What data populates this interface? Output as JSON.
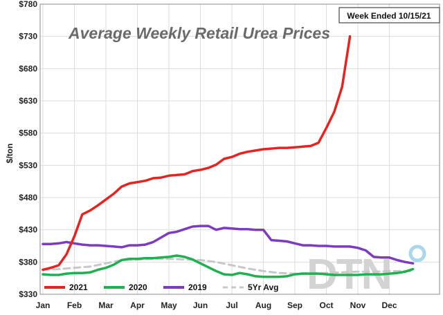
{
  "chart_data": {
    "type": "line",
    "title": "Average Weekly Retail Urea Prices",
    "note": "Week Ended 10/15/21",
    "ylabel": "$/ton",
    "xlabel": "",
    "ylim": [
      330,
      780
    ],
    "y_ticks": [
      "$330",
      "$380",
      "$430",
      "$480",
      "$530",
      "$580",
      "$630",
      "$680",
      "$730",
      "$780"
    ],
    "x_ticks": [
      "Jan",
      "Feb",
      "Mar",
      "Apr",
      "May",
      "Jun",
      "Jul",
      "Aug",
      "Sep",
      "Oct",
      "Nov",
      "Dec"
    ],
    "watermark": "DTN",
    "series": [
      {
        "name": "2021",
        "color": "#e8231f",
        "style": "solid",
        "points": [
          [
            0,
            368
          ],
          [
            0.25,
            371
          ],
          [
            0.5,
            375
          ],
          [
            0.75,
            392
          ],
          [
            1,
            420
          ],
          [
            1.25,
            454
          ],
          [
            1.5,
            460
          ],
          [
            1.75,
            468
          ],
          [
            2,
            477
          ],
          [
            2.25,
            486
          ],
          [
            2.5,
            497
          ],
          [
            2.75,
            502
          ],
          [
            3,
            504
          ],
          [
            3.25,
            506
          ],
          [
            3.5,
            510
          ],
          [
            3.75,
            511
          ],
          [
            4,
            514
          ],
          [
            4.25,
            515
          ],
          [
            4.5,
            516
          ],
          [
            4.75,
            521
          ],
          [
            5,
            523
          ],
          [
            5.25,
            526
          ],
          [
            5.5,
            531
          ],
          [
            5.75,
            540
          ],
          [
            6,
            543
          ],
          [
            6.25,
            548
          ],
          [
            6.5,
            551
          ],
          [
            6.75,
            553
          ],
          [
            7,
            555
          ],
          [
            7.25,
            556
          ],
          [
            7.5,
            557
          ],
          [
            7.75,
            557
          ],
          [
            8,
            558
          ],
          [
            8.25,
            559
          ],
          [
            8.5,
            560
          ],
          [
            8.75,
            565
          ],
          [
            9,
            588
          ],
          [
            9.25,
            613
          ],
          [
            9.5,
            652
          ],
          [
            9.75,
            730
          ]
        ]
      },
      {
        "name": "2020",
        "color": "#1fb050",
        "style": "solid",
        "points": [
          [
            0,
            361
          ],
          [
            0.25,
            360
          ],
          [
            0.5,
            360
          ],
          [
            0.75,
            362
          ],
          [
            1,
            363
          ],
          [
            1.25,
            363
          ],
          [
            1.5,
            364
          ],
          [
            1.75,
            368
          ],
          [
            2,
            371
          ],
          [
            2.25,
            376
          ],
          [
            2.5,
            383
          ],
          [
            2.75,
            385
          ],
          [
            3,
            385
          ],
          [
            3.25,
            386
          ],
          [
            3.5,
            386
          ],
          [
            3.75,
            387
          ],
          [
            4,
            388
          ],
          [
            4.25,
            390
          ],
          [
            4.5,
            388
          ],
          [
            4.75,
            384
          ],
          [
            5,
            378
          ],
          [
            5.25,
            372
          ],
          [
            5.5,
            366
          ],
          [
            5.75,
            361
          ],
          [
            6,
            360
          ],
          [
            6.25,
            363
          ],
          [
            6.5,
            361
          ],
          [
            6.75,
            358
          ],
          [
            7,
            357
          ],
          [
            7.25,
            357
          ],
          [
            7.5,
            357
          ],
          [
            7.75,
            358
          ],
          [
            8,
            361
          ],
          [
            8.25,
            362
          ],
          [
            8.5,
            362
          ],
          [
            8.75,
            362
          ],
          [
            9,
            361
          ],
          [
            9.25,
            360
          ],
          [
            9.5,
            360
          ],
          [
            9.75,
            360
          ],
          [
            10,
            360
          ],
          [
            10.25,
            361
          ],
          [
            10.5,
            361
          ],
          [
            10.75,
            361
          ],
          [
            11,
            362
          ],
          [
            11.25,
            363
          ],
          [
            11.5,
            365
          ],
          [
            11.75,
            369
          ]
        ]
      },
      {
        "name": "2019",
        "color": "#7d3bbf",
        "style": "solid",
        "points": [
          [
            0,
            408
          ],
          [
            0.25,
            408
          ],
          [
            0.5,
            409
          ],
          [
            0.75,
            411
          ],
          [
            1,
            409
          ],
          [
            1.25,
            407
          ],
          [
            1.5,
            406
          ],
          [
            1.75,
            406
          ],
          [
            2,
            405
          ],
          [
            2.25,
            404
          ],
          [
            2.5,
            403
          ],
          [
            2.75,
            406
          ],
          [
            3,
            406
          ],
          [
            3.25,
            407
          ],
          [
            3.5,
            411
          ],
          [
            3.75,
            418
          ],
          [
            4,
            425
          ],
          [
            4.25,
            427
          ],
          [
            4.5,
            431
          ],
          [
            4.75,
            435
          ],
          [
            5,
            436
          ],
          [
            5.25,
            436
          ],
          [
            5.5,
            430
          ],
          [
            5.75,
            433
          ],
          [
            6,
            432
          ],
          [
            6.25,
            431
          ],
          [
            6.5,
            431
          ],
          [
            6.75,
            430
          ],
          [
            7,
            430
          ],
          [
            7.25,
            414
          ],
          [
            7.5,
            413
          ],
          [
            7.75,
            412
          ],
          [
            8,
            409
          ],
          [
            8.25,
            406
          ],
          [
            8.5,
            406
          ],
          [
            8.75,
            405
          ],
          [
            9,
            405
          ],
          [
            9.25,
            404
          ],
          [
            9.5,
            404
          ],
          [
            9.75,
            404
          ],
          [
            10,
            402
          ],
          [
            10.25,
            398
          ],
          [
            10.5,
            388
          ],
          [
            10.75,
            387
          ],
          [
            11,
            387
          ],
          [
            11.25,
            383
          ],
          [
            11.5,
            380
          ],
          [
            11.75,
            378
          ]
        ]
      },
      {
        "name": "5Yr Avg",
        "color": "#c8c8c8",
        "style": "dashed",
        "points": [
          [
            0,
            368
          ],
          [
            0.5,
            369
          ],
          [
            1,
            371
          ],
          [
            1.5,
            373
          ],
          [
            2,
            378
          ],
          [
            2.5,
            383
          ],
          [
            3,
            384
          ],
          [
            3.5,
            385
          ],
          [
            4,
            385
          ],
          [
            4.5,
            384
          ],
          [
            5,
            383
          ],
          [
            5.5,
            380
          ],
          [
            6,
            375
          ],
          [
            6.5,
            370
          ],
          [
            7,
            366
          ],
          [
            7.5,
            363
          ],
          [
            8,
            362
          ],
          [
            8.5,
            363
          ],
          [
            9,
            363
          ],
          [
            9.5,
            364
          ],
          [
            10,
            365
          ],
          [
            10.5,
            365
          ],
          [
            11,
            366
          ],
          [
            11.5,
            366
          ],
          [
            11.75,
            366
          ]
        ]
      }
    ]
  }
}
